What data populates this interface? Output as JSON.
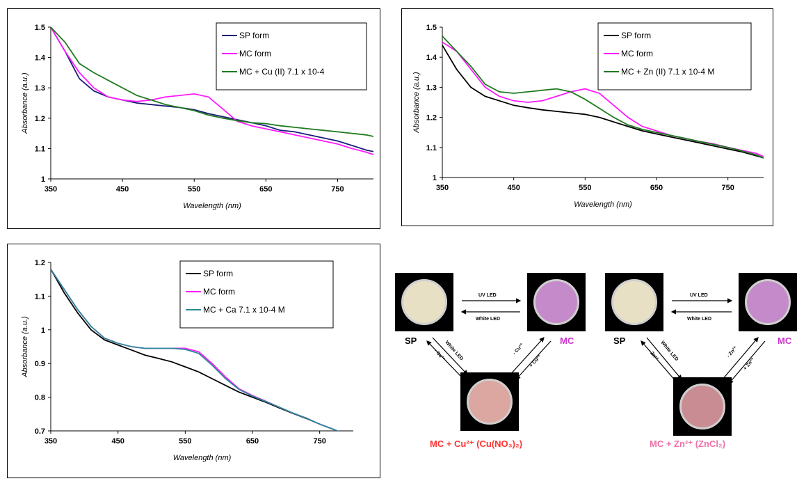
{
  "chart_data": [
    {
      "type": "line",
      "xlabel": "Wavelength (nm)",
      "ylabel": "Absorbance (a.u.)",
      "xlim": [
        350,
        800
      ],
      "ylim": [
        1.0,
        1.5
      ],
      "xticks": [
        "350",
        "450",
        "550",
        "650",
        "750"
      ],
      "yticks": [
        "1",
        "1.1",
        "1.2",
        "1.3",
        "1.4",
        "1.5"
      ],
      "legend_position": "top-right",
      "series": [
        {
          "name": "SP form",
          "color": "#1b1b7a",
          "x": [
            350,
            370,
            390,
            410,
            430,
            450,
            470,
            490,
            510,
            530,
            550,
            570,
            590,
            610,
            630,
            650,
            670,
            690,
            710,
            730,
            750,
            770,
            790,
            800
          ],
          "y": [
            1.5,
            1.42,
            1.33,
            1.29,
            1.27,
            1.26,
            1.25,
            1.245,
            1.24,
            1.235,
            1.228,
            1.215,
            1.205,
            1.195,
            1.185,
            1.175,
            1.16,
            1.155,
            1.145,
            1.135,
            1.125,
            1.11,
            1.095,
            1.09
          ]
        },
        {
          "name": "MC form",
          "color": "#ff1aff",
          "x": [
            350,
            370,
            390,
            410,
            430,
            450,
            470,
            490,
            510,
            530,
            550,
            570,
            590,
            610,
            630,
            650,
            670,
            690,
            710,
            730,
            750,
            770,
            790,
            800
          ],
          "y": [
            1.5,
            1.42,
            1.35,
            1.3,
            1.27,
            1.26,
            1.255,
            1.26,
            1.27,
            1.275,
            1.28,
            1.27,
            1.23,
            1.19,
            1.175,
            1.165,
            1.155,
            1.145,
            1.135,
            1.125,
            1.115,
            1.1,
            1.088,
            1.08
          ]
        },
        {
          "name": "MC + Cu (II) 7.1 x 10-4",
          "color": "#1f7a1f",
          "x": [
            350,
            370,
            390,
            410,
            430,
            450,
            470,
            490,
            510,
            530,
            550,
            570,
            590,
            610,
            630,
            650,
            670,
            690,
            710,
            730,
            750,
            770,
            790,
            800
          ],
          "y": [
            1.5,
            1.45,
            1.38,
            1.35,
            1.325,
            1.3,
            1.275,
            1.26,
            1.245,
            1.235,
            1.225,
            1.21,
            1.2,
            1.192,
            1.185,
            1.182,
            1.175,
            1.17,
            1.165,
            1.16,
            1.155,
            1.15,
            1.145,
            1.14
          ]
        }
      ]
    },
    {
      "type": "line",
      "xlabel": "Wavelength (nm)",
      "ylabel": "Absorbance (a.u.)",
      "xlim": [
        350,
        800
      ],
      "ylim": [
        1.0,
        1.5
      ],
      "xticks": [
        "350",
        "450",
        "550",
        "650",
        "750"
      ],
      "yticks": [
        "1",
        "1.1",
        "1.2",
        "1.3",
        "1.4",
        "1.5"
      ],
      "legend_position": "top-right",
      "series": [
        {
          "name": "SP form",
          "color": "#000000",
          "x": [
            350,
            370,
            390,
            410,
            430,
            450,
            470,
            490,
            510,
            530,
            550,
            570,
            590,
            610,
            630,
            650,
            670,
            690,
            710,
            730,
            750,
            770,
            790,
            800
          ],
          "y": [
            1.44,
            1.36,
            1.3,
            1.27,
            1.255,
            1.24,
            1.232,
            1.225,
            1.22,
            1.215,
            1.21,
            1.2,
            1.185,
            1.17,
            1.155,
            1.145,
            1.135,
            1.125,
            1.115,
            1.105,
            1.095,
            1.085,
            1.072,
            1.065
          ]
        },
        {
          "name": "MC form",
          "color": "#ff1aff",
          "x": [
            350,
            370,
            390,
            410,
            430,
            450,
            470,
            490,
            510,
            530,
            550,
            570,
            590,
            610,
            630,
            650,
            670,
            690,
            710,
            730,
            750,
            770,
            790,
            800
          ],
          "y": [
            1.45,
            1.42,
            1.36,
            1.3,
            1.27,
            1.255,
            1.25,
            1.255,
            1.27,
            1.285,
            1.295,
            1.28,
            1.24,
            1.2,
            1.17,
            1.155,
            1.14,
            1.13,
            1.12,
            1.112,
            1.1,
            1.09,
            1.08,
            1.07
          ]
        },
        {
          "name": "MC + Zn (II) 7.1 x 10-4 M",
          "color": "#1f7a1f",
          "x": [
            350,
            370,
            390,
            410,
            430,
            450,
            470,
            490,
            510,
            530,
            550,
            570,
            590,
            610,
            630,
            650,
            670,
            690,
            710,
            730,
            750,
            770,
            790,
            800
          ],
          "y": [
            1.47,
            1.42,
            1.37,
            1.31,
            1.285,
            1.28,
            1.285,
            1.29,
            1.295,
            1.285,
            1.26,
            1.23,
            1.2,
            1.175,
            1.16,
            1.15,
            1.14,
            1.13,
            1.12,
            1.11,
            1.1,
            1.088,
            1.075,
            1.065
          ]
        }
      ]
    },
    {
      "type": "line",
      "xlabel": "Wavelength (nm)",
      "ylabel": "Absorbance (a.u.)",
      "xlim": [
        350,
        800
      ],
      "ylim": [
        0.7,
        1.2
      ],
      "xticks": [
        "350",
        "450",
        "550",
        "650",
        "750"
      ],
      "yticks": [
        "0.7",
        "0.8",
        "0.9",
        "1",
        "1.1",
        "1.2"
      ],
      "legend_position": "top-right",
      "series": [
        {
          "name": "SP form",
          "color": "#000000",
          "x": [
            350,
            370,
            390,
            410,
            430,
            450,
            470,
            490,
            510,
            530,
            550,
            570,
            590,
            610,
            630,
            650,
            670,
            690,
            710,
            730,
            750,
            770,
            780
          ],
          "y": [
            1.18,
            1.11,
            1.05,
            1.0,
            0.97,
            0.955,
            0.94,
            0.925,
            0.915,
            0.905,
            0.89,
            0.875,
            0.855,
            0.835,
            0.815,
            0.8,
            0.785,
            0.768,
            0.752,
            0.737,
            0.72,
            0.705,
            0.697
          ]
        },
        {
          "name": "MC form",
          "color": "#ff1aff",
          "x": [
            350,
            370,
            390,
            410,
            430,
            450,
            470,
            490,
            510,
            530,
            550,
            570,
            590,
            610,
            630,
            650,
            670,
            690,
            710,
            730,
            750,
            770,
            780
          ],
          "y": [
            1.18,
            1.12,
            1.06,
            1.01,
            0.975,
            0.96,
            0.95,
            0.945,
            0.945,
            0.945,
            0.945,
            0.935,
            0.9,
            0.86,
            0.825,
            0.805,
            0.788,
            0.77,
            0.753,
            0.738,
            0.72,
            0.705,
            0.697
          ]
        },
        {
          "name": "MC + Ca 7.1 x 10-4 M",
          "color": "#2a8a9a",
          "x": [
            350,
            370,
            390,
            410,
            430,
            450,
            470,
            490,
            510,
            530,
            550,
            570,
            590,
            610,
            630,
            650,
            670,
            690,
            710,
            730,
            750,
            770,
            780
          ],
          "y": [
            1.18,
            1.12,
            1.06,
            1.01,
            0.975,
            0.96,
            0.95,
            0.945,
            0.945,
            0.945,
            0.942,
            0.93,
            0.895,
            0.855,
            0.823,
            0.803,
            0.787,
            0.77,
            0.753,
            0.738,
            0.72,
            0.705,
            0.697
          ]
        }
      ]
    }
  ],
  "scheme": {
    "cu": {
      "sp_label": "SP",
      "mc_label": "MC",
      "complex_label": "MC + Cu²⁺ (Cu(NO₃)₂)",
      "top_forward": "UV LED",
      "top_back": "White LED",
      "left_down": "- Cu²⁺",
      "left_up": "White LED",
      "right_down": "+ Cu²⁺",
      "right_up": "- Cu²⁺"
    },
    "zn": {
      "sp_label": "SP",
      "mc_label": "MC",
      "complex_label": "MC + Zn²⁺ (ZnCl₂)",
      "top_forward": "UV LED",
      "top_back": "White LED",
      "left_down": "- Zn²⁺",
      "left_up": "White LED",
      "right_down": "+ Zn²⁺",
      "right_up": "- Zn²⁺"
    },
    "colors": {
      "sp_dish": "#e8e0c4",
      "mc_dish": "#c58ac9",
      "cu_dish": "#dca7a0",
      "zn_dish": "#c98c93",
      "cu_label": "#ff3333",
      "zn_label": "#ee6fa8",
      "mc_label": "#cc33cc"
    }
  }
}
